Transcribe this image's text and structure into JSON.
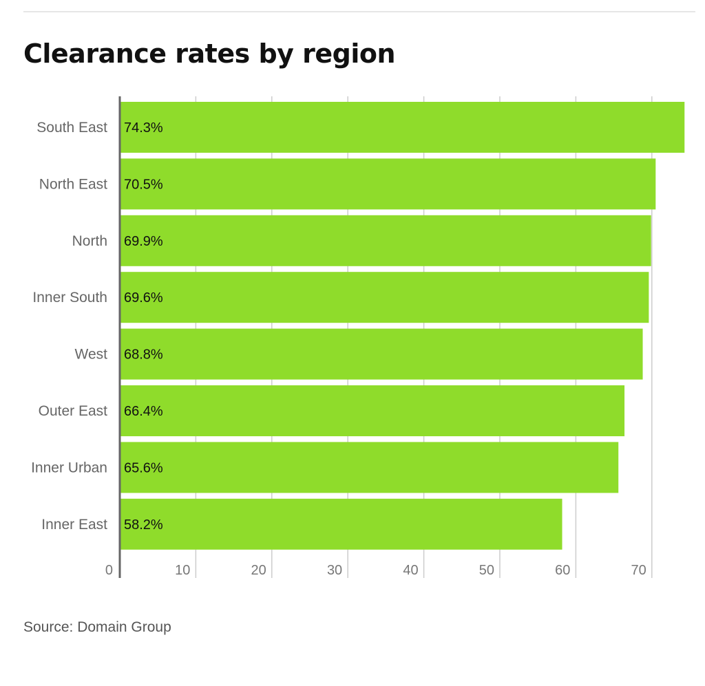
{
  "title": "Clearance rates by region",
  "source": "Source: Domain Group",
  "colors": {
    "bar": "#8fdc2b",
    "grid": "#cccccc",
    "axis": "#666666",
    "tick_text": "#777777",
    "label_text": "#666666",
    "value_text": "#111111"
  },
  "chart_data": {
    "type": "bar",
    "orientation": "horizontal",
    "title": "Clearance rates by region",
    "xlabel": "",
    "ylabel": "",
    "categories": [
      "South East",
      "North East",
      "North",
      "Inner South",
      "West",
      "Outer East",
      "Inner Urban",
      "Inner East"
    ],
    "values": [
      74.3,
      70.5,
      69.9,
      69.6,
      68.8,
      66.4,
      65.6,
      58.2
    ],
    "value_labels": [
      "74.3%",
      "70.5%",
      "69.9%",
      "69.6%",
      "68.8%",
      "66.4%",
      "65.6%",
      "58.2%"
    ],
    "xlim": [
      0,
      75
    ],
    "xticks": [
      0,
      10,
      20,
      30,
      40,
      50,
      60,
      70
    ],
    "xtick_labels": [
      "0",
      "10",
      "20",
      "30",
      "40",
      "50",
      "60",
      "70"
    ],
    "grid": true,
    "legend": "none"
  }
}
